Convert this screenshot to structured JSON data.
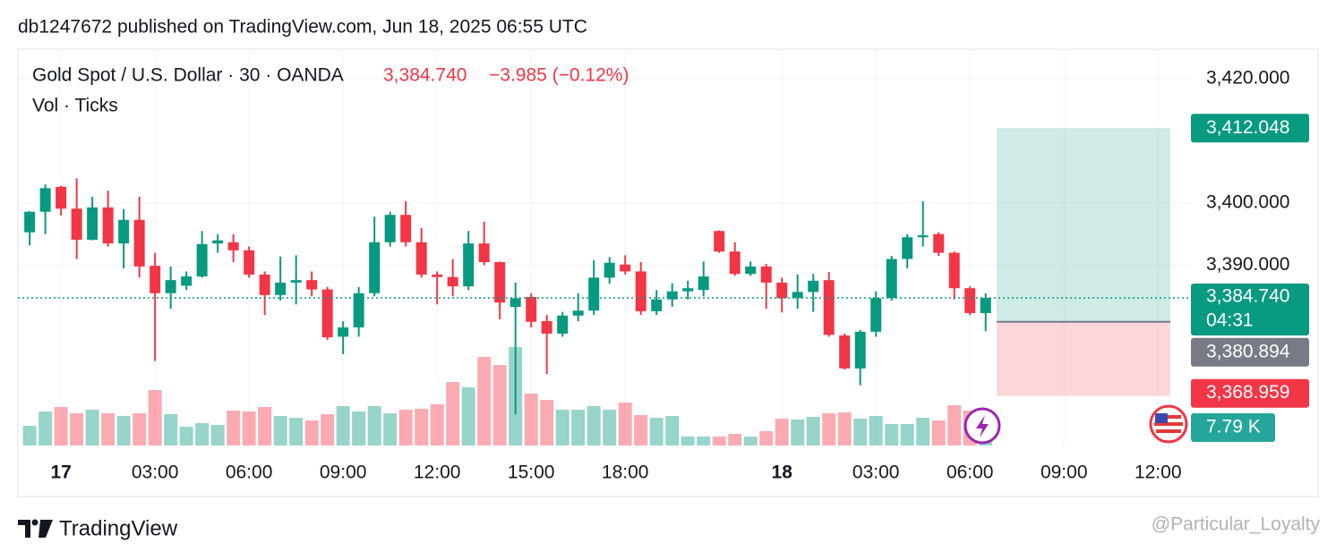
{
  "header": "db1247672 published on TradingView.com, Jun 18, 2025 06:55 UTC",
  "chart_data": {
    "type": "candlestick",
    "title": "Gold Spot / U.S. Dollar · 30 · OANDA",
    "last_price_label": "3,384.740",
    "change_label": "−3.985 (−0.12%)",
    "volume_title": "Vol · Ticks",
    "countdown": "04:31",
    "volume_last_label": "7.79 K",
    "up_color": "#089981",
    "down_color": "#f23645",
    "open": [
      3395.3,
      3398.6,
      3402.6,
      3399.1,
      3394.1,
      3399.3,
      3393.5,
      3397.3,
      3389.9,
      3385.5,
      3386.7,
      3388.2,
      3393.5,
      3393.7,
      3392.4,
      3388.5,
      3385.2,
      3387.2,
      3387.6,
      3386.1,
      3378.5,
      3380,
      3385.5,
      3393.7,
      3398.1,
      3393.7,
      3388.5,
      3388.1,
      3386.6,
      3393.5,
      3390.5,
      3383.3,
      3384.9,
      3381,
      3379,
      3381.9,
      3382.7,
      3388,
      3390.1,
      3389,
      3382.6,
      3384.5,
      3385.8,
      3386,
      3395.5,
      3392.2,
      3388.6,
      3389.8,
      3387.2,
      3384.7,
      3385.7,
      3387.6,
      3378.7,
      3373.4,
      3379.3,
      3384.7,
      3391,
      3394.5,
      3395,
      3392,
      3386.3,
      3382.3
    ],
    "high": [
      3398.7,
      3403,
      3402.8,
      3404,
      3401,
      3402,
      3399,
      3401,
      3392,
      3389.8,
      3389,
      3395.5,
      3395,
      3395,
      3393,
      3389,
      3391.4,
      3391.6,
      3389,
      3386.5,
      3381,
      3386.5,
      3397.8,
      3398.6,
      3400.3,
      3396,
      3389,
      3391,
      3395.5,
      3397,
      3390.6,
      3387.2,
      3385.5,
      3382,
      3382.5,
      3385.5,
      3390.8,
      3391.3,
      3391.6,
      3390.5,
      3386,
      3387.1,
      3387.5,
      3390.6,
      3395.6,
      3393.7,
      3390.6,
      3390.2,
      3388,
      3388.5,
      3388.6,
      3388.9,
      3379,
      3379.6,
      3385.8,
      3391.5,
      3395,
      3400.3,
      3395.3,
      3392.2,
      3386.6,
      3385.5
    ],
    "low": [
      3393.2,
      3395,
      3398,
      3391,
      3394,
      3393,
      3389.5,
      3388,
      3374.6,
      3383,
      3386,
      3388,
      3392,
      3390.5,
      3388,
      3382,
      3384.3,
      3383.7,
      3385,
      3378,
      3375.7,
      3378.5,
      3385,
      3393,
      3393,
      3388,
      3383.7,
      3385,
      3386,
      3390,
      3381.3,
      3366,
      3380,
      3372.5,
      3378.5,
      3381,
      3382,
      3387,
      3388.5,
      3382,
      3382,
      3383.3,
      3384.5,
      3385,
      3392,
      3388.3,
      3388.3,
      3383,
      3382.4,
      3383,
      3382.5,
      3378.5,
      3373.2,
      3370.7,
      3378.5,
      3384.3,
      3389.5,
      3393,
      3391.5,
      3384.5,
      3382,
      3379.4
    ],
    "close": [
      3398.6,
      3402.4,
      3399.1,
      3394.1,
      3399.3,
      3393.5,
      3397.3,
      3389.8,
      3385.5,
      3387.6,
      3388.2,
      3393.4,
      3394.0,
      3392.4,
      3388.5,
      3385.2,
      3387.2,
      3387.6,
      3386.1,
      3378.4,
      3380,
      3385.5,
      3393.7,
      3398.1,
      3393.7,
      3388.5,
      3388.1,
      3386.6,
      3393.5,
      3390.5,
      3384,
      3384.7,
      3380.9,
      3379,
      3381.9,
      3382.7,
      3388,
      3390.4,
      3389,
      3382.6,
      3384.5,
      3385.8,
      3386.3,
      3388.2,
      3392.2,
      3388.6,
      3389.8,
      3387.2,
      3384.7,
      3385.7,
      3387.5,
      3378.8,
      3373.4,
      3379.3,
      3384.7,
      3391,
      3394.5,
      3394.8,
      3392,
      3386.3,
      3382.3,
      3384.74
    ],
    "volume": [
      4400,
      7600,
      8600,
      7200,
      8000,
      7200,
      6600,
      7200,
      12400,
      7000,
      4200,
      5000,
      4600,
      7800,
      7600,
      8600,
      6600,
      6200,
      5600,
      7000,
      8800,
      7600,
      8800,
      7200,
      8000,
      8200,
      9200,
      14200,
      13000,
      19800,
      18000,
      22000,
      11600,
      10200,
      8000,
      8000,
      8800,
      8000,
      9600,
      6800,
      6200,
      6600,
      2000,
      2000,
      2000,
      2600,
      2000,
      3200,
      6000,
      5800,
      6400,
      7200,
      7400,
      6000,
      6600,
      4800,
      4800,
      6200,
      5600,
      9000,
      7800,
      7790
    ],
    "xlim": [
      -0.75,
      74.1
    ],
    "xticks": [
      {
        "value": 2,
        "label": "17"
      },
      {
        "value": 8,
        "label": "03:00"
      },
      {
        "value": 14,
        "label": "06:00"
      },
      {
        "value": 20,
        "label": "09:00"
      },
      {
        "value": 26,
        "label": "12:00"
      },
      {
        "value": 32,
        "label": "15:00"
      },
      {
        "value": 38,
        "label": "18:00"
      },
      {
        "value": 48,
        "label": "18"
      },
      {
        "value": 54,
        "label": "03:00"
      },
      {
        "value": 60,
        "label": "06:00"
      },
      {
        "value": 66,
        "label": "09:00"
      },
      {
        "value": 72,
        "label": "12:00"
      }
    ],
    "ylim": [
      3361,
      3424.75
    ],
    "yticks": [
      {
        "value": 3420,
        "label": "3,420.000"
      },
      {
        "value": 3400,
        "label": "3,400.000"
      },
      {
        "value": 3390,
        "label": "3,390.000"
      }
    ],
    "grid": true,
    "position": {
      "target": 3412.048,
      "target_label": "3,412.048",
      "entry": 3380.894,
      "entry_label": "3,380.894",
      "stop": 3368.959,
      "stop_label": "3,368.959"
    }
  },
  "footer": {
    "brand": "TradingView",
    "watermark": "@Particular_Loyalty"
  }
}
